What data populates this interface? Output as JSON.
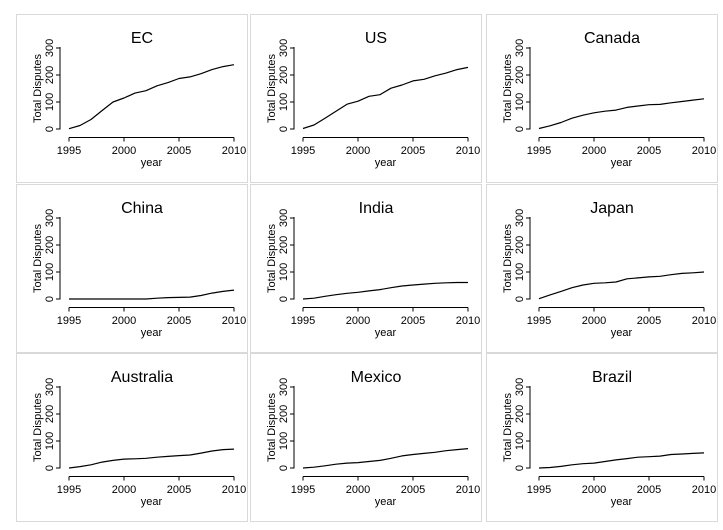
{
  "chart_data": [
    {
      "type": "line",
      "title": "EC",
      "xlabel": "year",
      "ylabel": "Total Disputes",
      "x": [
        1995,
        1996,
        1997,
        1998,
        1999,
        2000,
        2001,
        2002,
        2003,
        2004,
        2005,
        2006,
        2007,
        2008,
        2009,
        2010
      ],
      "values": [
        1,
        13,
        35,
        68,
        100,
        115,
        133,
        142,
        160,
        172,
        187,
        193,
        205,
        220,
        231,
        238
      ],
      "xlim": [
        1995,
        2010
      ],
      "ylim": [
        0,
        300
      ],
      "xticks": [
        "1995",
        "2000",
        "2005",
        "2010"
      ],
      "yticks": [
        "0",
        "100",
        "200",
        "300"
      ]
    },
    {
      "type": "line",
      "title": "US",
      "xlabel": "year",
      "ylabel": "Total Disputes",
      "x": [
        1995,
        1996,
        1997,
        1998,
        1999,
        2000,
        2001,
        2002,
        2003,
        2004,
        2005,
        2006,
        2007,
        2008,
        2009,
        2010
      ],
      "values": [
        2,
        15,
        40,
        66,
        92,
        103,
        121,
        127,
        151,
        163,
        178,
        184,
        197,
        207,
        220,
        228
      ],
      "xlim": [
        1995,
        2010
      ],
      "ylim": [
        0,
        300
      ],
      "xticks": [
        "1995",
        "2000",
        "2005",
        "2010"
      ],
      "yticks": [
        "0",
        "100",
        "200",
        "300"
      ]
    },
    {
      "type": "line",
      "title": "Canada",
      "xlabel": "year",
      "ylabel": "Total Disputes",
      "x": [
        1995,
        1996,
        1997,
        1998,
        1999,
        2000,
        2001,
        2002,
        2003,
        2004,
        2005,
        2006,
        2007,
        2008,
        2009,
        2010
      ],
      "values": [
        2,
        12,
        24,
        40,
        51,
        60,
        66,
        70,
        80,
        85,
        90,
        91,
        97,
        102,
        107,
        112
      ],
      "xlim": [
        1995,
        2010
      ],
      "ylim": [
        0,
        300
      ],
      "xticks": [
        "1995",
        "2000",
        "2005",
        "2010"
      ],
      "yticks": [
        "0",
        "100",
        "200",
        "300"
      ]
    },
    {
      "type": "line",
      "title": "China",
      "xlabel": "year",
      "ylabel": "Total Disputes",
      "x": [
        1995,
        1996,
        1997,
        1998,
        1999,
        2000,
        2001,
        2002,
        2003,
        2004,
        2005,
        2006,
        2007,
        2008,
        2009,
        2010
      ],
      "values": [
        0,
        0,
        0,
        0,
        0,
        0,
        0,
        0,
        3,
        5,
        6,
        7,
        13,
        22,
        28,
        33
      ],
      "xlim": [
        1995,
        2010
      ],
      "ylim": [
        0,
        300
      ],
      "xticks": [
        "1995",
        "2000",
        "2005",
        "2010"
      ],
      "yticks": [
        "0",
        "100",
        "200",
        "300"
      ]
    },
    {
      "type": "line",
      "title": "India",
      "xlabel": "year",
      "ylabel": "Total Disputes",
      "x": [
        1995,
        1996,
        1997,
        1998,
        1999,
        2000,
        2001,
        2002,
        2003,
        2004,
        2005,
        2006,
        2007,
        2008,
        2009,
        2010
      ],
      "values": [
        0,
        3,
        10,
        16,
        21,
        25,
        30,
        35,
        42,
        48,
        52,
        55,
        58,
        60,
        61,
        61
      ],
      "xlim": [
        1995,
        2010
      ],
      "ylim": [
        0,
        300
      ],
      "xticks": [
        "1995",
        "2000",
        "2005",
        "2010"
      ],
      "yticks": [
        "0",
        "100",
        "200",
        "300"
      ]
    },
    {
      "type": "line",
      "title": "Japan",
      "xlabel": "year",
      "ylabel": "Total Disputes",
      "x": [
        1995,
        1996,
        1997,
        1998,
        1999,
        2000,
        2001,
        2002,
        2003,
        2004,
        2005,
        2006,
        2007,
        2008,
        2009,
        2010
      ],
      "values": [
        1,
        15,
        28,
        42,
        52,
        58,
        60,
        63,
        75,
        78,
        82,
        84,
        90,
        95,
        97,
        100
      ],
      "xlim": [
        1995,
        2010
      ],
      "ylim": [
        0,
        300
      ],
      "xticks": [
        "1995",
        "2000",
        "2005",
        "2010"
      ],
      "yticks": [
        "0",
        "100",
        "200",
        "300"
      ]
    },
    {
      "type": "line",
      "title": "Australia",
      "xlabel": "year",
      "ylabel": "Total Disputes",
      "x": [
        1995,
        1996,
        1997,
        1998,
        1999,
        2000,
        2001,
        2002,
        2003,
        2004,
        2005,
        2006,
        2007,
        2008,
        2009,
        2010
      ],
      "values": [
        0,
        5,
        12,
        22,
        28,
        33,
        34,
        36,
        40,
        43,
        46,
        48,
        55,
        63,
        68,
        70
      ],
      "xlim": [
        1995,
        2010
      ],
      "ylim": [
        0,
        300
      ],
      "xticks": [
        "1995",
        "2000",
        "2005",
        "2010"
      ],
      "yticks": [
        "0",
        "100",
        "200",
        "300"
      ]
    },
    {
      "type": "line",
      "title": "Mexico",
      "xlabel": "year",
      "ylabel": "Total Disputes",
      "x": [
        1995,
        1996,
        1997,
        1998,
        1999,
        2000,
        2001,
        2002,
        2003,
        2004,
        2005,
        2006,
        2007,
        2008,
        2009,
        2010
      ],
      "values": [
        0,
        3,
        8,
        14,
        18,
        20,
        24,
        28,
        36,
        45,
        50,
        54,
        58,
        64,
        68,
        72
      ],
      "xlim": [
        1995,
        2010
      ],
      "ylim": [
        0,
        300
      ],
      "xticks": [
        "1995",
        "2000",
        "2005",
        "2010"
      ],
      "yticks": [
        "0",
        "100",
        "200",
        "300"
      ]
    },
    {
      "type": "line",
      "title": "Brazil",
      "xlabel": "year",
      "ylabel": "Total Disputes",
      "x": [
        1995,
        1996,
        1997,
        1998,
        1999,
        2000,
        2001,
        2002,
        2003,
        2004,
        2005,
        2006,
        2007,
        2008,
        2009,
        2010
      ],
      "values": [
        0,
        2,
        6,
        12,
        16,
        18,
        24,
        30,
        35,
        40,
        42,
        44,
        50,
        52,
        54,
        56
      ],
      "xlim": [
        1995,
        2010
      ],
      "ylim": [
        0,
        300
      ],
      "xticks": [
        "1995",
        "2000",
        "2005",
        "2010"
      ],
      "yticks": [
        "0",
        "100",
        "200",
        "300"
      ]
    }
  ],
  "colors": {
    "line": "#000000",
    "panel_border": "#d9d9d9",
    "axis": "#000000",
    "background": "#ffffff"
  }
}
